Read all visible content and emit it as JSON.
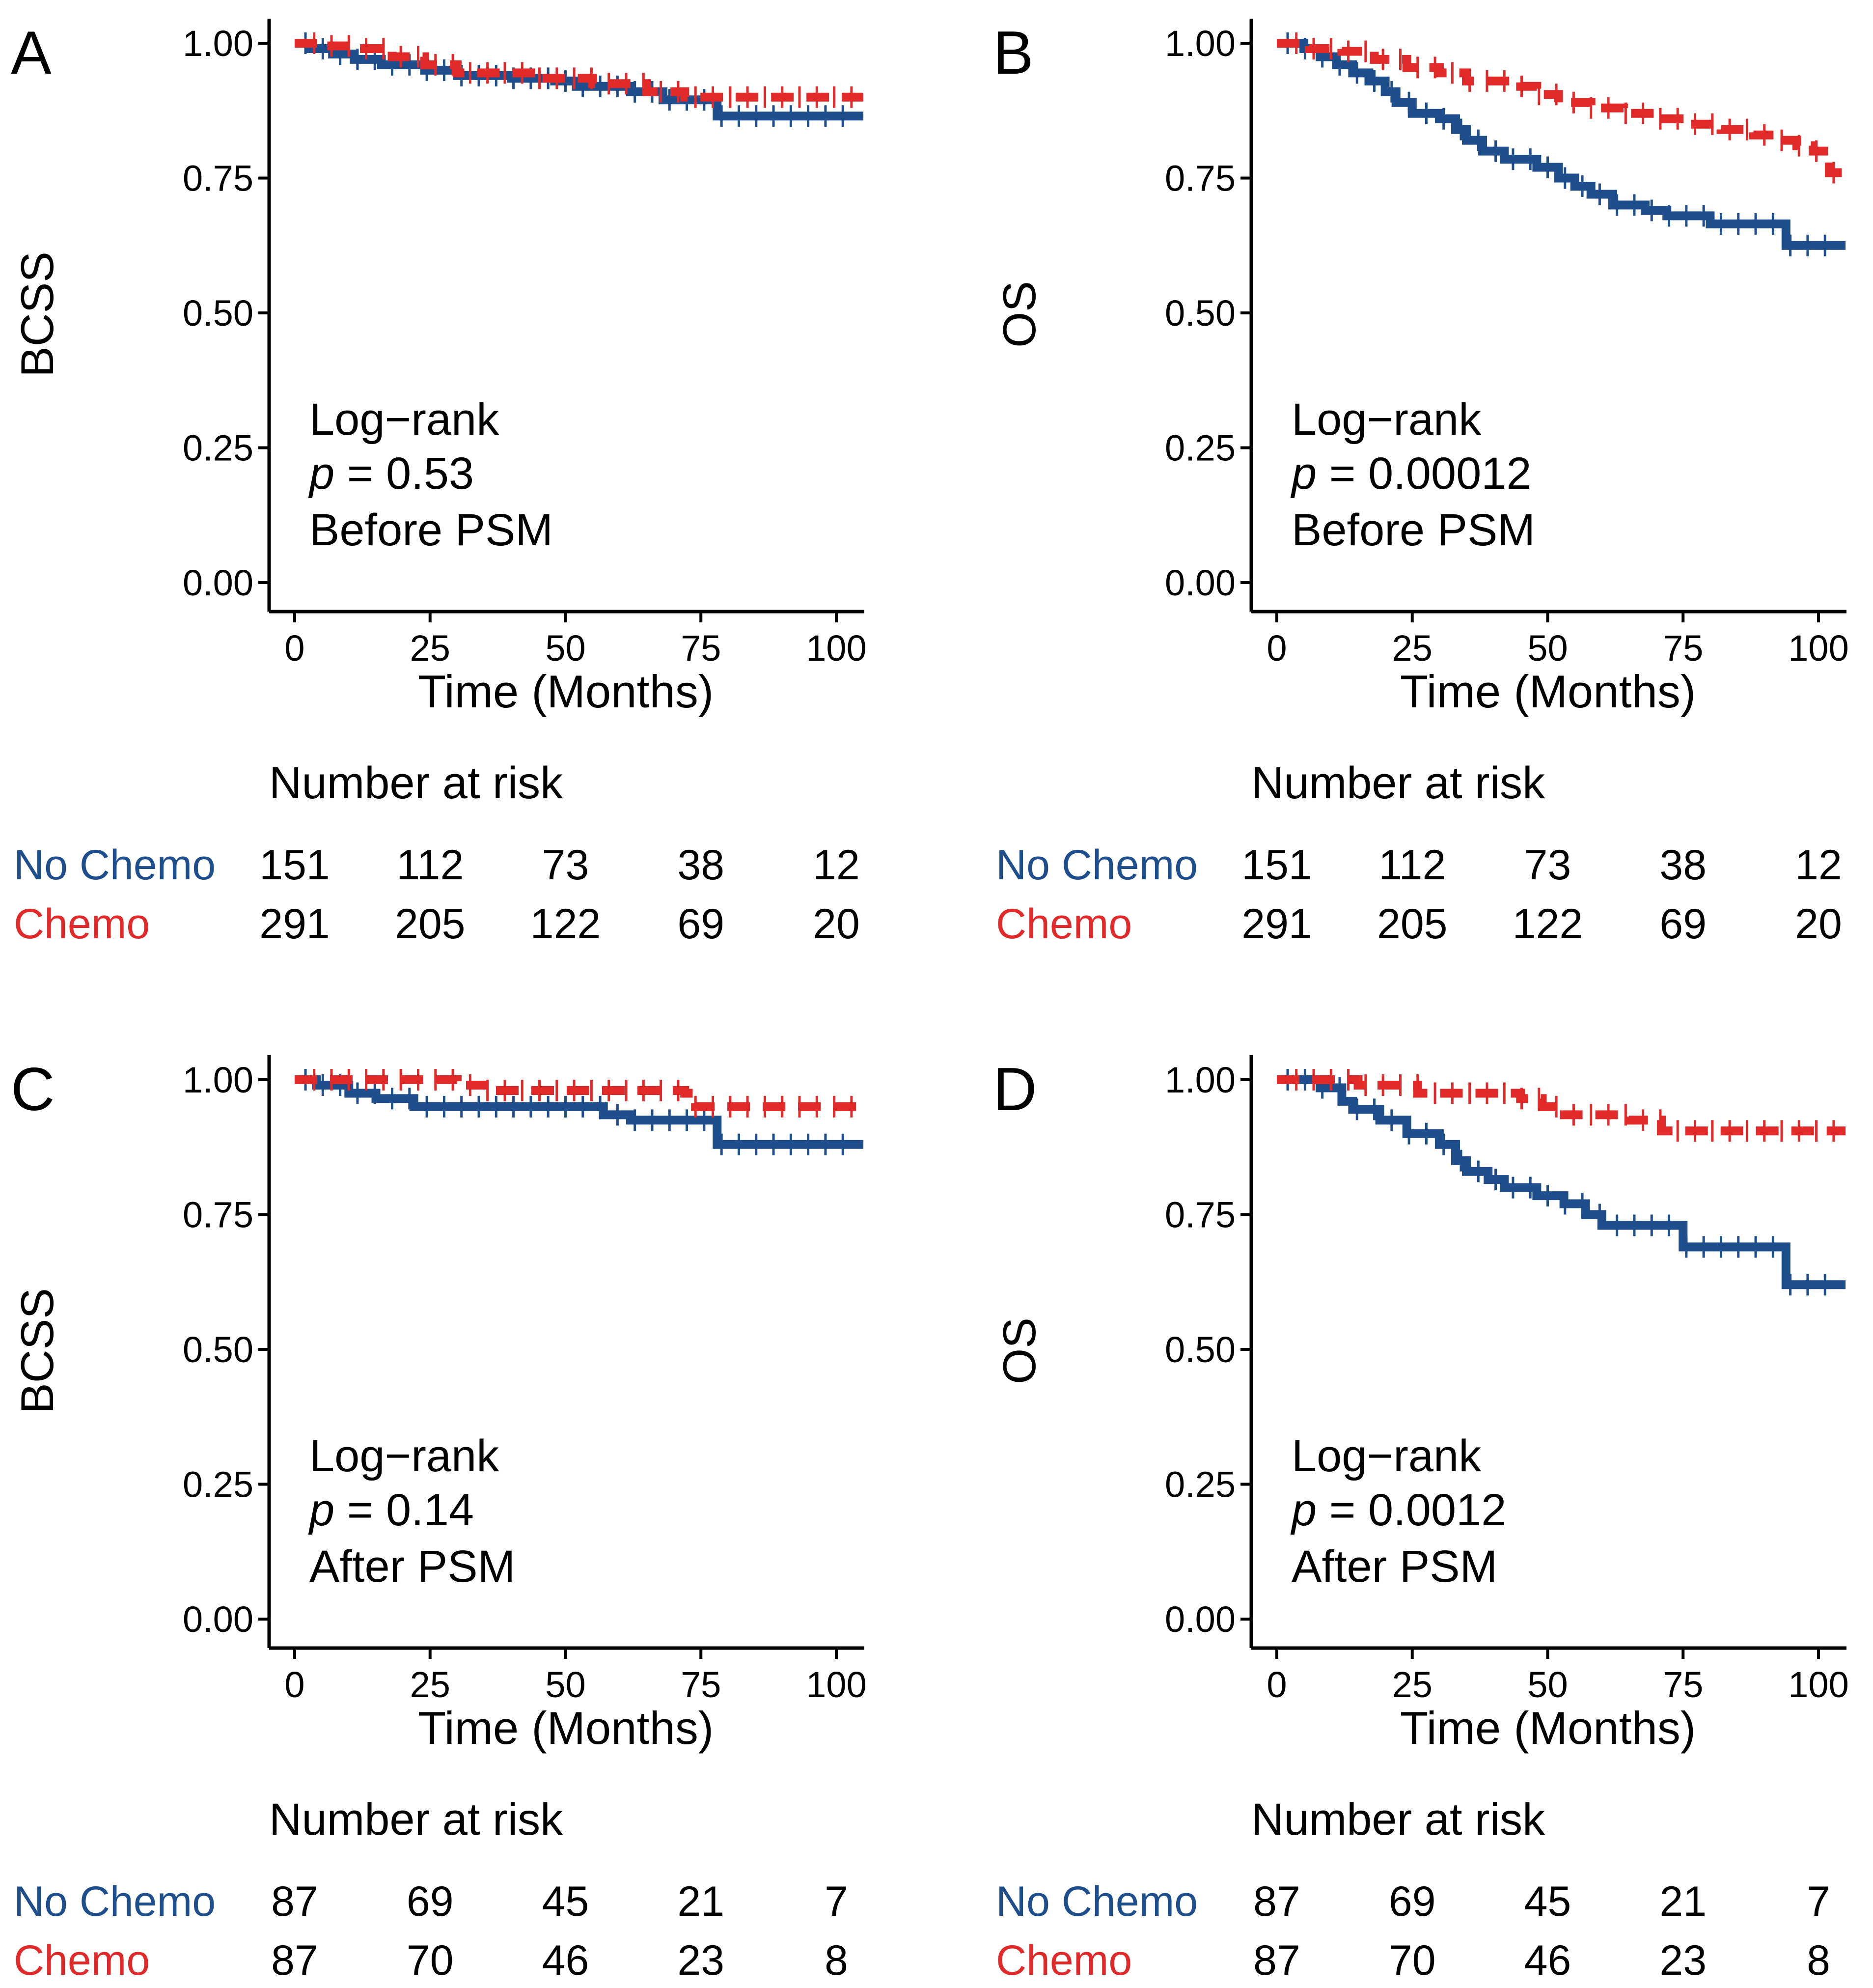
{
  "colors": {
    "no_chemo": "#1f4e8c",
    "chemo": "#e02a2a"
  },
  "chart_data": [
    {
      "type": "kaplan-meier",
      "panel": "A",
      "ylabel": "BCSS",
      "xlabel": "Time (Months)",
      "xlim": [
        0,
        105
      ],
      "ylim": [
        0,
        1
      ],
      "xticks": [
        "0",
        "25",
        "50",
        "75",
        "100"
      ],
      "yticks": [
        "0.00",
        "0.25",
        "0.50",
        "0.75",
        "1.00"
      ],
      "annotation": {
        "test": "Log−rank",
        "p_prefix": "p",
        "p_value": " = 0.53",
        "note": "Before PSM"
      },
      "series": [
        {
          "name": "No Chemo",
          "color": "#1f4e8c",
          "dashed": false,
          "steps": [
            [
              0,
              1.0
            ],
            [
              3,
              0.99
            ],
            [
              7,
              0.98
            ],
            [
              11,
              0.97
            ],
            [
              16,
              0.96
            ],
            [
              24,
              0.95
            ],
            [
              30,
              0.94
            ],
            [
              40,
              0.935
            ],
            [
              48,
              0.93
            ],
            [
              52,
              0.92
            ],
            [
              62,
              0.91
            ],
            [
              68,
              0.895
            ],
            [
              78,
              0.865
            ],
            [
              105,
              0.865
            ]
          ]
        },
        {
          "name": "Chemo",
          "color": "#e02a2a",
          "dashed": true,
          "steps": [
            [
              0,
              1.0
            ],
            [
              5,
              0.995
            ],
            [
              12,
              0.99
            ],
            [
              18,
              0.975
            ],
            [
              24,
              0.96
            ],
            [
              30,
              0.945
            ],
            [
              45,
              0.935
            ],
            [
              55,
              0.925
            ],
            [
              65,
              0.91
            ],
            [
              72,
              0.9
            ],
            [
              105,
              0.9
            ]
          ]
        }
      ],
      "risk_table": {
        "title": "Number at risk",
        "time_points": [
          0,
          25,
          50,
          75,
          100
        ],
        "rows": [
          {
            "label": "No Chemo",
            "values": [
              "151",
              "112",
              "73",
              "38",
              "12"
            ]
          },
          {
            "label": "Chemo",
            "values": [
              "291",
              "205",
              "122",
              "69",
              "20"
            ]
          }
        ]
      }
    },
    {
      "type": "kaplan-meier",
      "panel": "B",
      "ylabel": "OS",
      "xlabel": "Time (Months)",
      "xlim": [
        0,
        105
      ],
      "ylim": [
        0,
        1
      ],
      "xticks": [
        "0",
        "25",
        "50",
        "75",
        "100"
      ],
      "yticks": [
        "0.00",
        "0.25",
        "0.50",
        "0.75",
        "1.00"
      ],
      "annotation": {
        "test": "Log−rank",
        "p_prefix": "p",
        "p_value": " = 0.00012",
        "note": "Before PSM"
      },
      "series": [
        {
          "name": "No Chemo",
          "color": "#1f4e8c",
          "dashed": false,
          "steps": [
            [
              0,
              1.0
            ],
            [
              5,
              0.99
            ],
            [
              8,
              0.975
            ],
            [
              11,
              0.96
            ],
            [
              14,
              0.945
            ],
            [
              17,
              0.93
            ],
            [
              20,
              0.91
            ],
            [
              22,
              0.89
            ],
            [
              25,
              0.87
            ],
            [
              30,
              0.86
            ],
            [
              33,
              0.84
            ],
            [
              35,
              0.82
            ],
            [
              38,
              0.8
            ],
            [
              42,
              0.785
            ],
            [
              48,
              0.77
            ],
            [
              52,
              0.75
            ],
            [
              55,
              0.735
            ],
            [
              58,
              0.72
            ],
            [
              62,
              0.7
            ],
            [
              68,
              0.69
            ],
            [
              72,
              0.68
            ],
            [
              80,
              0.665
            ],
            [
              94,
              0.625
            ],
            [
              105,
              0.625
            ]
          ]
        },
        {
          "name": "Chemo",
          "color": "#e02a2a",
          "dashed": true,
          "steps": [
            [
              0,
              1.0
            ],
            [
              6,
              0.99
            ],
            [
              12,
              0.985
            ],
            [
              18,
              0.97
            ],
            [
              24,
              0.955
            ],
            [
              30,
              0.945
            ],
            [
              35,
              0.93
            ],
            [
              45,
              0.92
            ],
            [
              48,
              0.905
            ],
            [
              52,
              0.89
            ],
            [
              58,
              0.88
            ],
            [
              64,
              0.87
            ],
            [
              70,
              0.86
            ],
            [
              76,
              0.85
            ],
            [
              82,
              0.84
            ],
            [
              88,
              0.83
            ],
            [
              93,
              0.82
            ],
            [
              96,
              0.81
            ],
            [
              99,
              0.8
            ],
            [
              102,
              0.76
            ],
            [
              105,
              0.76
            ]
          ]
        }
      ],
      "risk_table": {
        "title": "Number at risk",
        "time_points": [
          0,
          25,
          50,
          75,
          100
        ],
        "rows": [
          {
            "label": "No Chemo",
            "values": [
              "151",
              "112",
              "73",
              "38",
              "12"
            ]
          },
          {
            "label": "Chemo",
            "values": [
              "291",
              "205",
              "122",
              "69",
              "20"
            ]
          }
        ]
      }
    },
    {
      "type": "kaplan-meier",
      "panel": "C",
      "ylabel": "BCSS",
      "xlabel": "Time (Months)",
      "xlim": [
        0,
        105
      ],
      "ylim": [
        0,
        1
      ],
      "xticks": [
        "0",
        "25",
        "50",
        "75",
        "100"
      ],
      "yticks": [
        "0.00",
        "0.25",
        "0.50",
        "0.75",
        "1.00"
      ],
      "annotation": {
        "test": "Log−rank",
        "p_prefix": "p",
        "p_value": " = 0.14",
        "note": "After PSM"
      },
      "series": [
        {
          "name": "No Chemo",
          "color": "#1f4e8c",
          "dashed": false,
          "steps": [
            [
              0,
              1.0
            ],
            [
              4,
              0.99
            ],
            [
              10,
              0.975
            ],
            [
              15,
              0.965
            ],
            [
              22,
              0.95
            ],
            [
              57,
              0.935
            ],
            [
              62,
              0.925
            ],
            [
              78,
              0.88
            ],
            [
              105,
              0.88
            ]
          ]
        },
        {
          "name": "Chemo",
          "color": "#e02a2a",
          "dashed": true,
          "steps": [
            [
              0,
              1.0
            ],
            [
              30,
              0.99
            ],
            [
              35,
              0.98
            ],
            [
              72,
              0.975
            ],
            [
              74,
              0.95
            ],
            [
              105,
              0.95
            ]
          ]
        }
      ],
      "risk_table": {
        "title": "Number at risk",
        "time_points": [
          0,
          25,
          50,
          75,
          100
        ],
        "rows": [
          {
            "label": "No Chemo",
            "values": [
              "87",
              "69",
              "45",
              "21",
              "7"
            ]
          },
          {
            "label": "Chemo",
            "values": [
              "87",
              "70",
              "46",
              "23",
              "8"
            ]
          }
        ]
      }
    },
    {
      "type": "kaplan-meier",
      "panel": "D",
      "ylabel": "OS",
      "xlabel": "Time (Months)",
      "xlim": [
        0,
        105
      ],
      "ylim": [
        0,
        1
      ],
      "xticks": [
        "0",
        "25",
        "50",
        "75",
        "100"
      ],
      "yticks": [
        "0.00",
        "0.25",
        "0.50",
        "0.75",
        "1.00"
      ],
      "annotation": {
        "test": "Log−rank",
        "p_prefix": "p",
        "p_value": " = 0.0012",
        "note": "After PSM"
      },
      "series": [
        {
          "name": "No Chemo",
          "color": "#1f4e8c",
          "dashed": false,
          "steps": [
            [
              0,
              1.0
            ],
            [
              8,
              0.985
            ],
            [
              12,
              0.96
            ],
            [
              14,
              0.945
            ],
            [
              19,
              0.925
            ],
            [
              24,
              0.9
            ],
            [
              30,
              0.88
            ],
            [
              33,
              0.85
            ],
            [
              35,
              0.83
            ],
            [
              39,
              0.815
            ],
            [
              42,
              0.8
            ],
            [
              48,
              0.785
            ],
            [
              53,
              0.77
            ],
            [
              57,
              0.75
            ],
            [
              60,
              0.73
            ],
            [
              65,
              0.73
            ],
            [
              75,
              0.69
            ],
            [
              94,
              0.62
            ],
            [
              105,
              0.62
            ]
          ]
        },
        {
          "name": "Chemo",
          "color": "#e02a2a",
          "dashed": true,
          "steps": [
            [
              0,
              1.0
            ],
            [
              15,
              0.99
            ],
            [
              26,
              0.975
            ],
            [
              45,
              0.965
            ],
            [
              49,
              0.95
            ],
            [
              52,
              0.935
            ],
            [
              65,
              0.925
            ],
            [
              71,
              0.905
            ],
            [
              105,
              0.905
            ]
          ]
        }
      ],
      "risk_table": {
        "title": "Number at risk",
        "time_points": [
          0,
          25,
          50,
          75,
          100
        ],
        "rows": [
          {
            "label": "No Chemo",
            "values": [
              "87",
              "69",
              "45",
              "21",
              "7"
            ]
          },
          {
            "label": "Chemo",
            "values": [
              "87",
              "70",
              "46",
              "23",
              "8"
            ]
          }
        ]
      }
    }
  ]
}
